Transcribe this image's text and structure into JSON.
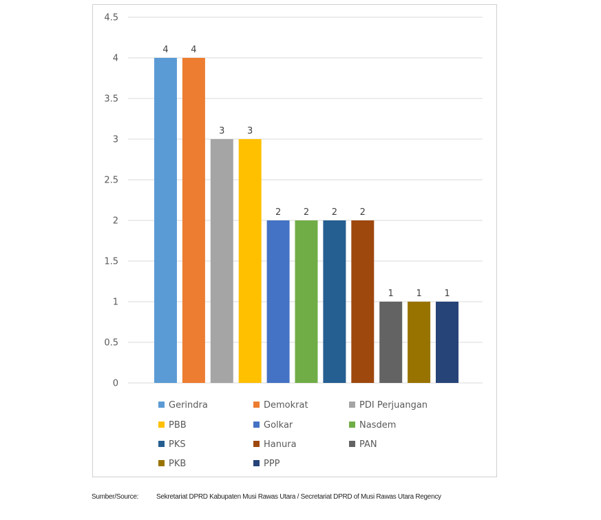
{
  "chart_data": {
    "type": "bar",
    "categories": [
      "Gerindra",
      "Demokrat",
      "PDI Perjuangan",
      "PBB",
      "Golkar",
      "Nasdem",
      "PKS",
      "Hanura",
      "PAN",
      "PKB",
      "PPP"
    ],
    "values": [
      4,
      4,
      3,
      3,
      2,
      2,
      2,
      2,
      1,
      1,
      1
    ],
    "colors": [
      "#5b9bd5",
      "#ed7d31",
      "#a5a5a5",
      "#ffc000",
      "#4472c4",
      "#70ad47",
      "#255e91",
      "#9e480e",
      "#636363",
      "#997300",
      "#264478"
    ],
    "title": "",
    "xlabel": "",
    "ylabel": "",
    "ylim": [
      0,
      4.5
    ],
    "yticks": [
      "0",
      "0.5",
      "1",
      "1.5",
      "2",
      "2.5",
      "3",
      "3.5",
      "4",
      "4.5"
    ],
    "grid": true,
    "legend_position": "bottom",
    "data_labels": true
  },
  "source": {
    "label": "Sumber/Source:",
    "text": "Sekretariat DPRD Kabupaten Musi Rawas Utara / Secretariat DPRD of Musi Rawas Utara Regency"
  }
}
